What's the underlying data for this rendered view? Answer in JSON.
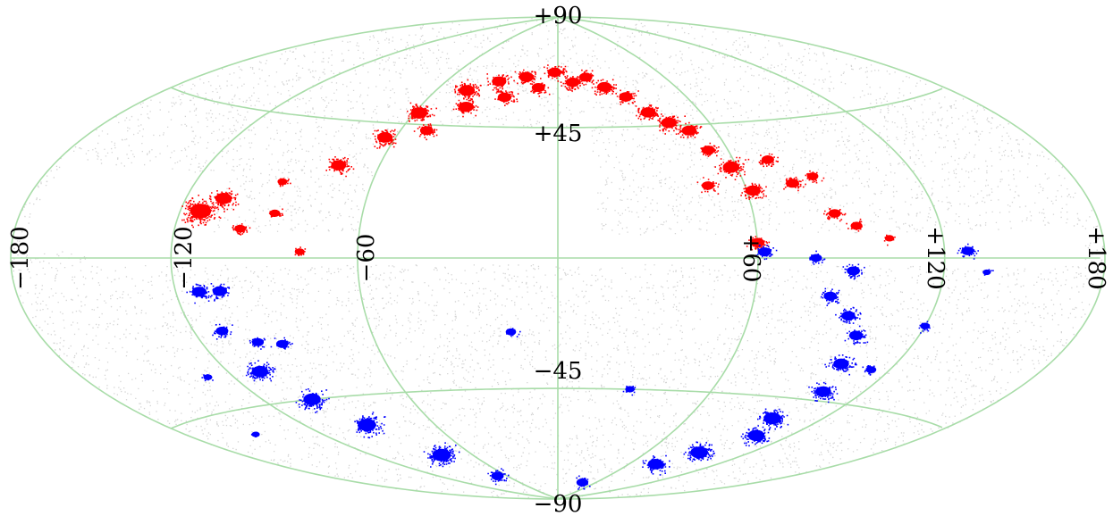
{
  "projection": "aitoff-hammer (elliptical all-sky)",
  "colors": {
    "background": "#ffffff",
    "grid": "#a8dca8",
    "sky_points": "#d4d4d4",
    "north_clusters": "#ff0000",
    "south_clusters": "#0000ff",
    "labels": "#000000"
  },
  "latitude_labels": {
    "top": "+90",
    "upper": "+45",
    "lower": "−45",
    "bottom": "−90"
  },
  "longitude_labels": {
    "far_left": "−180",
    "left": "−120",
    "center_left": "−60",
    "center_right": "+60",
    "right": "+120",
    "far_right": "+180"
  },
  "grid": {
    "meridians_deg": [
      -180,
      -120,
      -60,
      0,
      60,
      120,
      180
    ],
    "parallels_deg": [
      -45,
      0,
      45
    ]
  },
  "north_clusters": [
    {
      "lon": -113,
      "lat": 14,
      "n": 120
    },
    {
      "lon": -107,
      "lat": 18,
      "n": 60
    },
    {
      "lon": -98,
      "lat": 9,
      "n": 18
    },
    {
      "lon": -90,
      "lat": 24,
      "n": 10
    },
    {
      "lon": -88,
      "lat": 14,
      "n": 14
    },
    {
      "lon": -78,
      "lat": 2,
      "n": 10
    },
    {
      "lon": -74,
      "lat": 30,
      "n": 45
    },
    {
      "lon": -64,
      "lat": 40,
      "n": 50
    },
    {
      "lon": -58,
      "lat": 49,
      "n": 60
    },
    {
      "lon": -50,
      "lat": 43,
      "n": 30
    },
    {
      "lon": -45,
      "lat": 58,
      "n": 55
    },
    {
      "lon": -40,
      "lat": 52,
      "n": 45
    },
    {
      "lon": -32,
      "lat": 62,
      "n": 40
    },
    {
      "lon": -25,
      "lat": 56,
      "n": 35
    },
    {
      "lon": -18,
      "lat": 64,
      "n": 40
    },
    {
      "lon": -10,
      "lat": 60,
      "n": 30
    },
    {
      "lon": -2,
      "lat": 66,
      "n": 35
    },
    {
      "lon": 8,
      "lat": 62,
      "n": 35
    },
    {
      "lon": 16,
      "lat": 64,
      "n": 30
    },
    {
      "lon": 24,
      "lat": 60,
      "n": 40
    },
    {
      "lon": 32,
      "lat": 56,
      "n": 35
    },
    {
      "lon": 38,
      "lat": 50,
      "n": 45
    },
    {
      "lon": 44,
      "lat": 46,
      "n": 50
    },
    {
      "lon": 50,
      "lat": 43,
      "n": 40
    },
    {
      "lon": 53,
      "lat": 36,
      "n": 30
    },
    {
      "lon": 58,
      "lat": 30,
      "n": 60
    },
    {
      "lon": 62,
      "lat": 22,
      "n": 45
    },
    {
      "lon": 48,
      "lat": 24,
      "n": 25
    },
    {
      "lon": 72,
      "lat": 32,
      "n": 25
    },
    {
      "lon": 76,
      "lat": 24,
      "n": 30
    },
    {
      "lon": 84,
      "lat": 26,
      "n": 18
    },
    {
      "lon": 86,
      "lat": 14,
      "n": 25
    },
    {
      "lon": 92,
      "lat": 10,
      "n": 20
    },
    {
      "lon": 60,
      "lat": 5,
      "n": 35
    },
    {
      "lon": 102,
      "lat": 6,
      "n": 8
    }
  ],
  "south_clusters": [
    {
      "lon": -112,
      "lat": -10,
      "n": 40
    },
    {
      "lon": -105,
      "lat": -10,
      "n": 40
    },
    {
      "lon": -110,
      "lat": -22,
      "n": 25
    },
    {
      "lon": -108,
      "lat": -35,
      "n": 60
    },
    {
      "lon": -100,
      "lat": -26,
      "n": 20
    },
    {
      "lon": -92,
      "lat": -27,
      "n": 22
    },
    {
      "lon": -100,
      "lat": -45,
      "n": 70
    },
    {
      "lon": -92,
      "lat": -55,
      "n": 80
    },
    {
      "lon": -80,
      "lat": -68,
      "n": 80
    },
    {
      "lon": -130,
      "lat": -35,
      "n": 6
    },
    {
      "lon": -150,
      "lat": -52,
      "n": 4
    },
    {
      "lon": -70,
      "lat": -78,
      "n": 25
    },
    {
      "lon": -15,
      "lat": -25,
      "n": 12
    },
    {
      "lon": 28,
      "lat": -45,
      "n": 8
    },
    {
      "lon": 62,
      "lat": 2,
      "n": 30
    },
    {
      "lon": 78,
      "lat": 0,
      "n": 20
    },
    {
      "lon": 90,
      "lat": -4,
      "n": 30
    },
    {
      "lon": 84,
      "lat": -12,
      "n": 30
    },
    {
      "lon": 92,
      "lat": -18,
      "n": 35
    },
    {
      "lon": 98,
      "lat": -24,
      "n": 35
    },
    {
      "lon": 100,
      "lat": -33,
      "n": 50
    },
    {
      "lon": 104,
      "lat": -42,
      "n": 50
    },
    {
      "lon": 98,
      "lat": -52,
      "n": 70
    },
    {
      "lon": 104,
      "lat": -58,
      "n": 60
    },
    {
      "lon": 92,
      "lat": -66,
      "n": 70
    },
    {
      "lon": 80,
      "lat": -72,
      "n": 50
    },
    {
      "lon": 113,
      "lat": -34,
      "n": 12
    },
    {
      "lon": 120,
      "lat": -20,
      "n": 10
    },
    {
      "lon": 128,
      "lat": 2,
      "n": 25
    },
    {
      "lon": 135,
      "lat": -4,
      "n": 4
    },
    {
      "lon": 40,
      "lat": -82,
      "n": 20
    }
  ]
}
